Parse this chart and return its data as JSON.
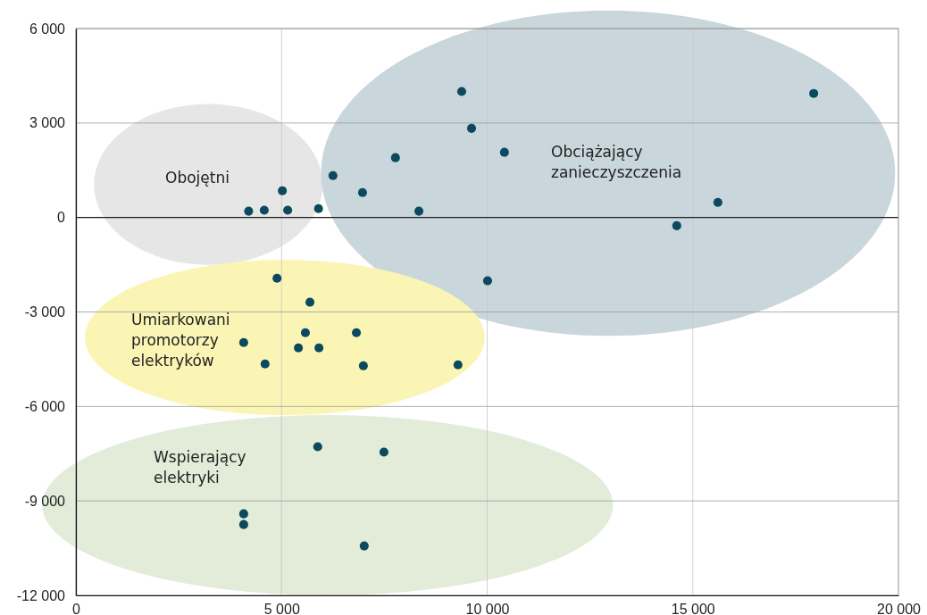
{
  "chart_data": {
    "type": "scatter",
    "marker": "circle",
    "grid": true,
    "x": [
      4200,
      4580,
      5150,
      5020,
      5900,
      6250,
      6970,
      7770,
      8340,
      9380,
      9620,
      10420,
      10010,
      14610,
      15610,
      17940,
      4890,
      5690,
      5580,
      6820,
      4080,
      5410,
      5910,
      4600,
      6990,
      9290,
      5880,
      7490,
      4080,
      4080,
      7010
    ],
    "series": [
      {
        "color": "#0b4a5e",
        "values": [
          200,
          230,
          230,
          850,
          280,
          1330,
          790,
          1900,
          200,
          4000,
          2830,
          2070,
          -2010,
          -260,
          480,
          3940,
          -1930,
          -2690,
          -3660,
          -3660,
          -3970,
          -4140,
          -4140,
          -4650,
          -4710,
          -4680,
          -7280,
          -7450,
          -9410,
          -9750,
          -10430
        ]
      }
    ],
    "xlim": [
      0,
      20000
    ],
    "ylim": [
      -12000,
      6000
    ],
    "xticks": [
      0,
      {
        "value": 5000,
        "label": "5 000"
      },
      {
        "value": 10000,
        "label": "10 000"
      },
      {
        "value": 15000,
        "label": "15 000"
      },
      {
        "value": 20000,
        "label": "20 000"
      }
    ],
    "yticks": [
      {
        "value": -12000,
        "label": "-12 000"
      },
      {
        "value": -9000,
        "label": "-9 000"
      },
      {
        "value": -6000,
        "label": "-6 000"
      },
      {
        "value": -3000,
        "label": "-3 000"
      },
      0,
      {
        "value": 3000,
        "label": "3 000"
      },
      {
        "value": 6000,
        "label": "6 000"
      }
    ],
    "ref_lines": [
      {
        "axis": "y",
        "value": 0,
        "color": "#222222"
      }
    ],
    "annotations": [
      "Obojętni",
      "Obciążający\nzanieczyszczenia",
      "Umiarkowani\npromotorzy\nelektryków",
      "Wspierający\nelektryki"
    ]
  }
}
